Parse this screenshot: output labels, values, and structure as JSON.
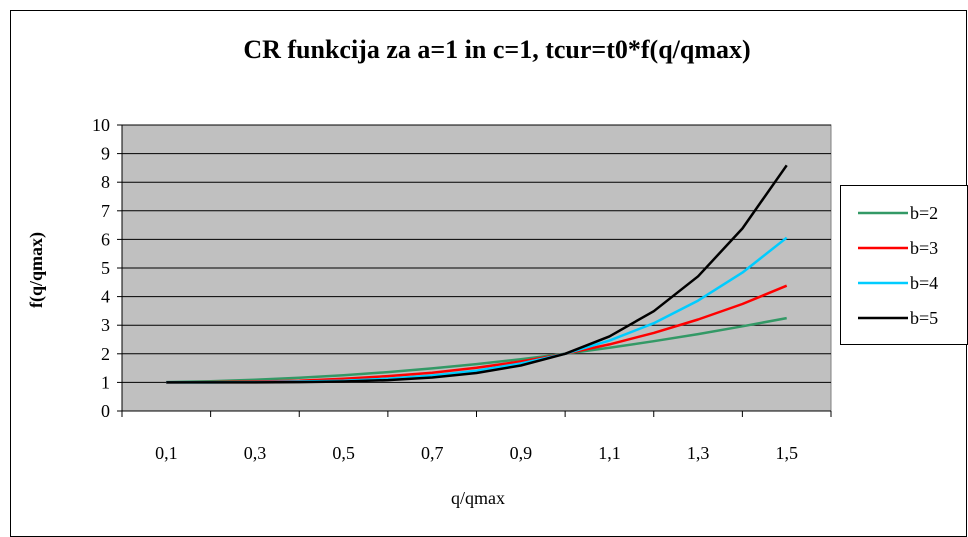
{
  "chart_data": {
    "type": "line",
    "title": "CR funkcija za a=1 in c=1, tcur=t0*f(q/qmax)",
    "xlabel": "q/qmax",
    "ylabel": "f(q/qmax)",
    "x": [
      0.1,
      0.2,
      0.3,
      0.4,
      0.5,
      0.6,
      0.7,
      0.8,
      0.9,
      1.0,
      1.1,
      1.2,
      1.3,
      1.4,
      1.5
    ],
    "x_tick_labels": [
      "0,1",
      "0,3",
      "0,5",
      "0,7",
      "0,9",
      "1,1",
      "1,3",
      "1,5"
    ],
    "y_tick_labels": [
      "0",
      "1",
      "2",
      "3",
      "4",
      "5",
      "6",
      "7",
      "8",
      "9",
      "10"
    ],
    "ylim": [
      0,
      10
    ],
    "grid": true,
    "legend_position": "right",
    "plot_background": "#c0c0c0",
    "series": [
      {
        "name": "b=2",
        "color": "#339966",
        "values": [
          1.01,
          1.04,
          1.09,
          1.16,
          1.25,
          1.36,
          1.49,
          1.64,
          1.81,
          2.0,
          2.21,
          2.44,
          2.69,
          2.96,
          3.25
        ]
      },
      {
        "name": "b=3",
        "color": "#ff0000",
        "values": [
          1.0,
          1.01,
          1.03,
          1.06,
          1.13,
          1.22,
          1.34,
          1.51,
          1.73,
          2.0,
          2.33,
          2.73,
          3.2,
          3.74,
          4.38
        ]
      },
      {
        "name": "b=4",
        "color": "#00ccff",
        "values": [
          1.0,
          1.0,
          1.01,
          1.03,
          1.06,
          1.13,
          1.24,
          1.41,
          1.66,
          2.0,
          2.46,
          3.07,
          3.86,
          4.84,
          6.06
        ]
      },
      {
        "name": "b=5",
        "color": "#000000",
        "values": [
          1.0,
          1.0,
          1.0,
          1.01,
          1.03,
          1.08,
          1.17,
          1.33,
          1.59,
          2.0,
          2.61,
          3.49,
          4.71,
          6.38,
          8.59
        ]
      }
    ]
  }
}
